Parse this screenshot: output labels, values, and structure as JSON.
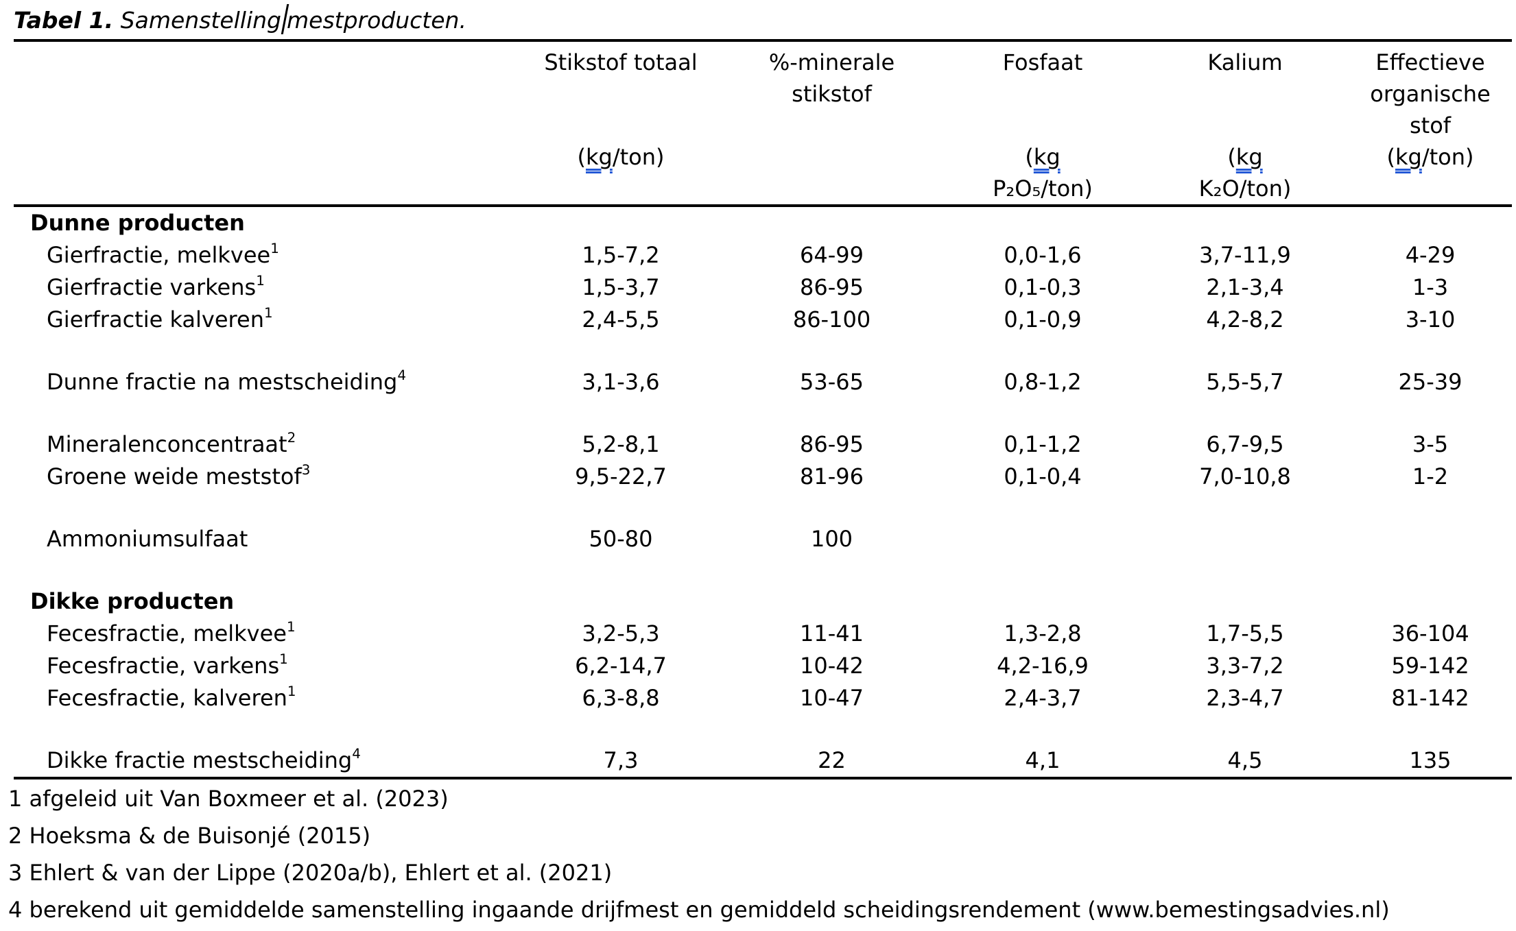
{
  "accent_blue": "#2459d6",
  "caption": {
    "number": "Tabel 1.",
    "text_before_cursor": "Samenstelling",
    "text_after_cursor": "mestproducten."
  },
  "table": {
    "columns": [
      {
        "title_lines": [
          "Stikstof totaal",
          "",
          ""
        ],
        "unit_lines": [
          "(kg/ton)",
          ""
        ]
      },
      {
        "title_lines": [
          "%-minerale",
          "stikstof",
          ""
        ],
        "unit_lines": [
          "",
          ""
        ]
      },
      {
        "title_lines": [
          "Fosfaat",
          "",
          ""
        ],
        "unit_lines": [
          "(kg",
          "P₂O₅/ton)"
        ]
      },
      {
        "title_lines": [
          "Kalium",
          "",
          ""
        ],
        "unit_lines": [
          "(kg",
          "K₂O/ton)"
        ]
      },
      {
        "title_lines": [
          "Effectieve",
          "organische",
          "stof"
        ],
        "unit_lines": [
          "(kg/ton)",
          ""
        ]
      }
    ],
    "rows": [
      {
        "type": "section",
        "label": "Dunne producten"
      },
      {
        "type": "item",
        "label": "Gierfractie, melkvee",
        "sup": "1",
        "values": [
          "1,5-7,2",
          "64-99",
          "0,0-1,6",
          "3,7-11,9",
          "4-29"
        ]
      },
      {
        "type": "item",
        "label": "Gierfractie varkens",
        "sup": "1",
        "values": [
          "1,5-3,7",
          "86-95",
          "0,1-0,3",
          "2,1-3,4",
          "1-3"
        ]
      },
      {
        "type": "item",
        "label": "Gierfractie kalveren",
        "sup": "1",
        "values": [
          "2,4-5,5",
          "86-100",
          "0,1-0,9",
          "4,2-8,2",
          "3-10"
        ]
      },
      {
        "type": "spacer"
      },
      {
        "type": "item",
        "label": "Dunne fractie na mestscheiding",
        "sup": "4",
        "values": [
          "3,1-3,6",
          "53-65",
          "0,8-1,2",
          "5,5-5,7",
          "25-39"
        ]
      },
      {
        "type": "spacer"
      },
      {
        "type": "item",
        "label": "Mineralenconcentraat",
        "sup": "2",
        "values": [
          "5,2-8,1",
          "86-95",
          "0,1-1,2",
          "6,7-9,5",
          "3-5"
        ]
      },
      {
        "type": "item",
        "label": "Groene weide meststof",
        "sup": "3",
        "values": [
          "9,5-22,7",
          "81-96",
          "0,1-0,4",
          "7,0-10,8",
          "1-2"
        ]
      },
      {
        "type": "spacer"
      },
      {
        "type": "item",
        "label": "Ammoniumsulfaat",
        "sup": "",
        "values": [
          "50-80",
          "100",
          "",
          "",
          ""
        ]
      },
      {
        "type": "spacer"
      },
      {
        "type": "section",
        "label": "Dikke producten"
      },
      {
        "type": "item",
        "label": "Fecesfractie, melkvee",
        "sup": "1",
        "values": [
          "3,2-5,3",
          "11-41",
          "1,3-2,8",
          "1,7-5,5",
          "36-104"
        ]
      },
      {
        "type": "item",
        "label": "Fecesfractie, varkens",
        "sup": "1",
        "values": [
          "6,2-14,7",
          "10-42",
          "4,2-16,9",
          "3,3-7,2",
          "59-142"
        ]
      },
      {
        "type": "item",
        "label": "Fecesfractie, kalveren",
        "sup": "1",
        "values": [
          "6,3-8,8",
          "10-47",
          "2,4-3,7",
          "2,3-4,7",
          "81-142"
        ]
      },
      {
        "type": "spacer"
      },
      {
        "type": "item",
        "label": "Dikke fractie mestscheiding",
        "sup": "4",
        "values": [
          "7,3",
          "22",
          "4,1",
          "4,5",
          "135"
        ]
      }
    ]
  },
  "footnotes": [
    "1 afgeleid uit Van Boxmeer et al. (2023)",
    "2 Hoeksma & de Buisonjé (2015)",
    "3 Ehlert & van der Lippe (2020a/b), Ehlert et al. (2021)",
    "4 berekend uit gemiddelde samenstelling ingaande drijfmest en gemiddeld scheidingsrendement (www.bemestingsadvies.nl)"
  ]
}
